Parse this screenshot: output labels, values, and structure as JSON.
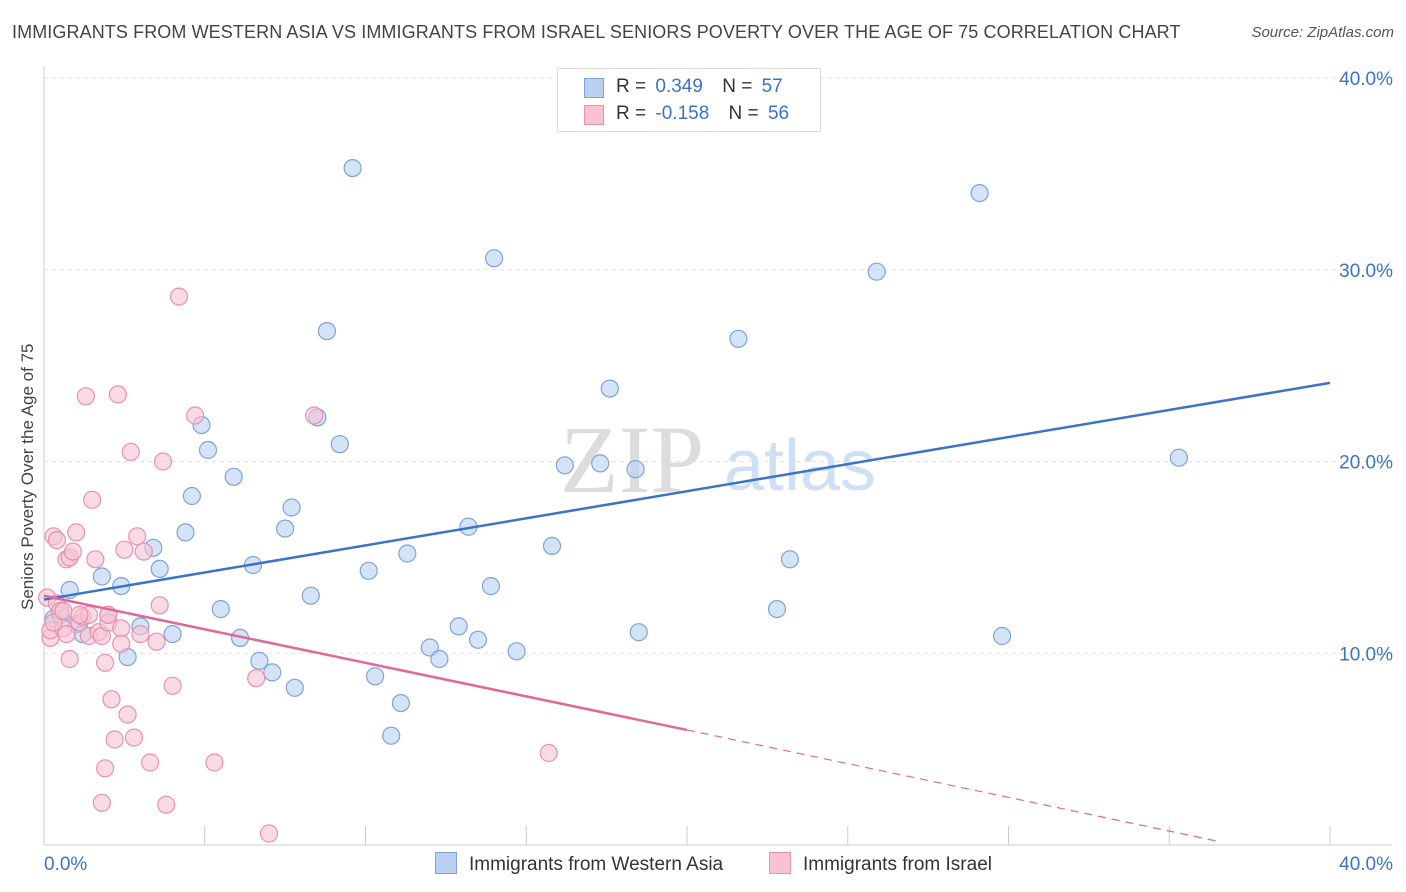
{
  "header": {
    "title": "IMMIGRANTS FROM WESTERN ASIA VS IMMIGRANTS FROM ISRAEL SENIORS POVERTY OVER THE AGE OF 75 CORRELATION CHART",
    "source": "Source: ZipAtlas.com"
  },
  "watermark": {
    "zip": "ZIP",
    "atlas": "atlas"
  },
  "legend": {
    "r_label": "R =",
    "n_label": "N =",
    "series_a": {
      "r": "0.349",
      "n": "57"
    },
    "series_b": {
      "r": "-0.158",
      "n": "56"
    }
  },
  "colors": {
    "blue_fill": "#b9d0f0",
    "blue_stroke": "#7ea3d9",
    "blue_line": "#3b73c8",
    "pink_fill": "#f7c3d3",
    "pink_stroke": "#e891ad",
    "pink_line": "#e0689a",
    "tick_text": "#3b73c8"
  },
  "chart_data": {
    "type": "scatter",
    "xlabel": "",
    "ylabel": "Seniors Poverty Over the Age of 75",
    "xlim": [
      0,
      40
    ],
    "ylim": [
      0,
      40
    ],
    "x_tick_labels": [
      {
        "value": 0,
        "label": "0.0%"
      },
      {
        "value": 40,
        "label": "40.0%"
      }
    ],
    "y_tick_labels": [
      {
        "value": 10,
        "label": "10.0%"
      },
      {
        "value": 20,
        "label": "20.0%"
      },
      {
        "value": 30,
        "label": "30.0%"
      },
      {
        "value": 40,
        "label": "40.0%"
      }
    ],
    "grid": true,
    "legend_position": "top-center",
    "series": [
      {
        "name": "Immigrants from Western Asia",
        "color": "#7ea3d9",
        "points": [
          [
            0.3,
            11.8
          ],
          [
            0.5,
            12.0
          ],
          [
            0.8,
            13.3
          ],
          [
            1.0,
            11.5
          ],
          [
            1.2,
            11.0
          ],
          [
            1.8,
            14.0
          ],
          [
            2.0,
            12.0
          ],
          [
            2.4,
            13.5
          ],
          [
            2.6,
            9.8
          ],
          [
            3.0,
            11.4
          ],
          [
            3.4,
            15.5
          ],
          [
            3.6,
            14.4
          ],
          [
            4.0,
            11.0
          ],
          [
            4.4,
            16.3
          ],
          [
            4.6,
            18.2
          ],
          [
            4.9,
            21.9
          ],
          [
            5.1,
            20.6
          ],
          [
            5.5,
            12.3
          ],
          [
            5.9,
            19.2
          ],
          [
            6.1,
            10.8
          ],
          [
            6.5,
            14.6
          ],
          [
            6.7,
            9.6
          ],
          [
            7.1,
            9.0
          ],
          [
            7.5,
            16.5
          ],
          [
            7.7,
            17.6
          ],
          [
            7.8,
            8.2
          ],
          [
            8.3,
            13.0
          ],
          [
            8.5,
            22.3
          ],
          [
            8.8,
            26.8
          ],
          [
            9.2,
            20.9
          ],
          [
            9.6,
            35.3
          ],
          [
            10.1,
            14.3
          ],
          [
            10.3,
            8.8
          ],
          [
            10.8,
            5.7
          ],
          [
            11.1,
            7.4
          ],
          [
            11.3,
            15.2
          ],
          [
            12.0,
            10.3
          ],
          [
            12.3,
            9.7
          ],
          [
            12.9,
            11.4
          ],
          [
            13.2,
            16.6
          ],
          [
            13.5,
            10.7
          ],
          [
            14.0,
            30.6
          ],
          [
            13.9,
            13.5
          ],
          [
            14.7,
            10.1
          ],
          [
            15.8,
            15.6
          ],
          [
            16.2,
            19.8
          ],
          [
            17.3,
            19.9
          ],
          [
            17.6,
            23.8
          ],
          [
            18.4,
            19.6
          ],
          [
            18.5,
            11.1
          ],
          [
            21.6,
            26.4
          ],
          [
            22.8,
            12.3
          ],
          [
            23.2,
            14.9
          ],
          [
            25.9,
            29.9
          ],
          [
            29.1,
            34.0
          ],
          [
            29.8,
            10.9
          ],
          [
            35.3,
            20.2
          ]
        ]
      },
      {
        "name": "Immigrants from Israel",
        "color": "#e891ad",
        "points": [
          [
            0.1,
            12.9
          ],
          [
            0.2,
            10.8
          ],
          [
            0.2,
            11.2
          ],
          [
            0.3,
            16.1
          ],
          [
            0.4,
            15.9
          ],
          [
            0.4,
            12.6
          ],
          [
            0.5,
            12.2
          ],
          [
            0.6,
            11.3
          ],
          [
            0.7,
            14.9
          ],
          [
            0.7,
            11.0
          ],
          [
            0.8,
            15.0
          ],
          [
            0.8,
            9.7
          ],
          [
            0.9,
            15.3
          ],
          [
            1.0,
            16.3
          ],
          [
            1.1,
            11.6
          ],
          [
            1.2,
            11.9
          ],
          [
            1.3,
            23.4
          ],
          [
            1.4,
            12.0
          ],
          [
            1.4,
            10.9
          ],
          [
            1.5,
            18.0
          ],
          [
            1.6,
            14.9
          ],
          [
            1.7,
            11.1
          ],
          [
            1.8,
            2.2
          ],
          [
            1.8,
            10.9
          ],
          [
            1.9,
            9.5
          ],
          [
            1.9,
            4.0
          ],
          [
            2.0,
            11.6
          ],
          [
            2.1,
            7.6
          ],
          [
            2.2,
            5.5
          ],
          [
            2.3,
            23.5
          ],
          [
            2.4,
            11.3
          ],
          [
            2.4,
            10.5
          ],
          [
            2.5,
            15.4
          ],
          [
            2.6,
            6.8
          ],
          [
            2.7,
            20.5
          ],
          [
            2.8,
            5.6
          ],
          [
            2.9,
            16.1
          ],
          [
            3.0,
            11.0
          ],
          [
            3.1,
            15.3
          ],
          [
            3.3,
            4.3
          ],
          [
            3.5,
            10.6
          ],
          [
            3.6,
            12.5
          ],
          [
            3.7,
            20.0
          ],
          [
            3.8,
            2.1
          ],
          [
            4.0,
            8.3
          ],
          [
            4.2,
            28.6
          ],
          [
            4.7,
            22.4
          ],
          [
            5.3,
            4.3
          ],
          [
            6.6,
            8.7
          ],
          [
            7.0,
            0.6
          ],
          [
            8.4,
            22.4
          ],
          [
            15.7,
            4.8
          ],
          [
            0.3,
            11.6
          ],
          [
            0.6,
            12.2
          ],
          [
            1.1,
            12.0
          ],
          [
            2.0,
            12.0
          ]
        ]
      }
    ],
    "trendlines": [
      {
        "series": "Immigrants from Western Asia",
        "x": [
          0,
          40
        ],
        "y": [
          12.8,
          24.1
        ],
        "style": "solid"
      },
      {
        "series": "Immigrants from Israel",
        "x": [
          0,
          20
        ],
        "y": [
          13.0,
          6.0
        ],
        "style": "solid"
      },
      {
        "series": "Immigrants from Israel",
        "x": [
          20,
          36.5
        ],
        "y": [
          6.0,
          0.2
        ],
        "style": "dashed"
      }
    ]
  }
}
